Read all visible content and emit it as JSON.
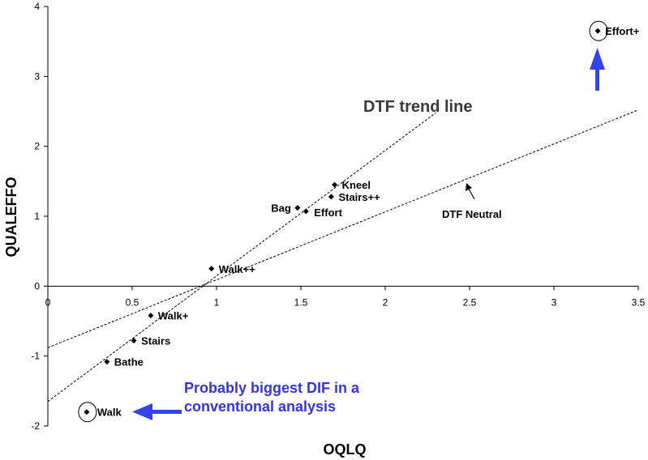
{
  "chart_data": {
    "type": "scatter",
    "title": "",
    "xlabel": "OQLQ",
    "ylabel": "QUALEFFO",
    "xlim": [
      0,
      3.5
    ],
    "ylim": [
      -2,
      4
    ],
    "x_ticks": [
      "0",
      "0.5",
      "1",
      "1.5",
      "2",
      "2.5",
      "3",
      "3.5"
    ],
    "y_ticks": [
      "-2",
      "-1",
      "0",
      "1",
      "2",
      "3",
      "4"
    ],
    "grid": false,
    "points": [
      {
        "label": "Effort+",
        "x": 3.26,
        "y": 3.65,
        "circled": true
      },
      {
        "label": "Kneel",
        "x": 1.7,
        "y": 1.45
      },
      {
        "label": "Stairs++",
        "x": 1.68,
        "y": 1.28
      },
      {
        "label": "Bag",
        "x": 1.48,
        "y": 1.12
      },
      {
        "label": "Effort",
        "x": 1.53,
        "y": 1.07
      },
      {
        "label": "Walk++",
        "x": 0.97,
        "y": 0.25
      },
      {
        "label": "Walk+",
        "x": 0.61,
        "y": -0.42
      },
      {
        "label": "Stairs",
        "x": 0.51,
        "y": -0.78
      },
      {
        "label": "Bathe",
        "x": 0.35,
        "y": -1.08
      },
      {
        "label": "Walk",
        "x": 0.23,
        "y": -1.8,
        "circled": true
      }
    ],
    "lines": [
      {
        "label": "DTF trend line",
        "x": [
          0,
          2.3
        ],
        "y": [
          -1.65,
          2.48
        ],
        "style": "dashed"
      },
      {
        "label": "DTF Neutral",
        "x": [
          0,
          3.5
        ],
        "y": [
          -0.88,
          2.52
        ],
        "style": "dashed"
      }
    ],
    "annotations": {
      "trend_label": "DTF trend line",
      "neutral_label": "DTF Neutral",
      "dif_line1": "Probably biggest DIF in a",
      "dif_line2": "conventional analysis"
    },
    "colors": {
      "points": "#000000",
      "lines": "#000000",
      "highlight": "#3333ee",
      "arrow": "#3344ee"
    }
  }
}
